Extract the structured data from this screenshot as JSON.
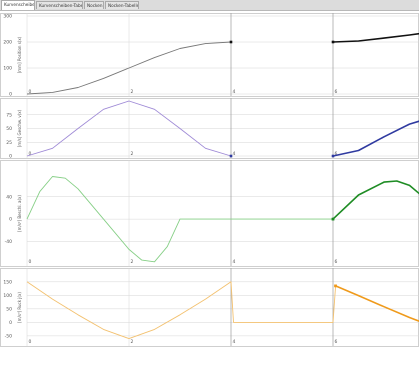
{
  "tabs": [
    {
      "label": "Kurvenscheibe",
      "active": true
    },
    {
      "label": "Kurvenscheiben-Tabelle",
      "active": false
    },
    {
      "label": "Nocken",
      "active": false
    },
    {
      "label": "Nocken-Tabelle",
      "active": false
    }
  ],
  "colors": {
    "grid": "#d6d6d6",
    "cursor": "#9a9a9a",
    "position": "#777777",
    "position_dark": "#111111",
    "velocity": "#9f8ad6",
    "velocity_dark": "#2f3aa0",
    "acceleration": "#86cf86",
    "acceleration_dark": "#1e8c24",
    "jerk": "#f3c16f",
    "jerk_dark": "#ef9a1b"
  },
  "x_ticks": [
    "0",
    "2",
    "4",
    "6"
  ],
  "chart_data": [
    {
      "type": "line",
      "ylabel": "[mm] Position s(x)",
      "ylim": [
        0,
        300
      ],
      "y_ticks": [
        "300",
        "200",
        "100",
        "0"
      ],
      "series": [
        {
          "values": [
            [
              0,
              0
            ],
            [
              0.5,
              6
            ],
            [
              1,
              25
            ],
            [
              1.5,
              60
            ],
            [
              2,
              100
            ],
            [
              2.5,
              140
            ],
            [
              3,
              175
            ],
            [
              3.5,
              194
            ],
            [
              4,
              200
            ]
          ]
        },
        {
          "values": [
            [
              6,
              200
            ],
            [
              6.5,
              204
            ],
            [
              7,
              215
            ],
            [
              7.5,
              227
            ],
            [
              8,
              240
            ]
          ]
        }
      ]
    },
    {
      "type": "line",
      "ylabel": "[m/s] Geschw. v(x)",
      "ylim": [
        0,
        100
      ],
      "y_ticks": [
        "75",
        "50",
        "25",
        "0"
      ],
      "series": [
        {
          "values": [
            [
              0,
              0
            ],
            [
              0.5,
              14
            ],
            [
              1,
              50
            ],
            [
              1.5,
              85
            ],
            [
              2,
              100
            ],
            [
              2.5,
              85
            ],
            [
              3,
              50
            ],
            [
              3.5,
              14
            ],
            [
              4,
              0
            ]
          ]
        },
        {
          "values": [
            [
              6,
              0
            ],
            [
              6.5,
              10
            ],
            [
              7,
              35
            ],
            [
              7.5,
              58
            ],
            [
              8,
              72
            ]
          ]
        }
      ]
    },
    {
      "type": "line",
      "ylabel": "[m/s²] Beschl. a(x)",
      "ylim": [
        -80,
        100
      ],
      "y_ticks": [
        "40",
        "0",
        "-40"
      ],
      "series": [
        {
          "values": [
            [
              0,
              0
            ],
            [
              0.25,
              49
            ],
            [
              0.5,
              76
            ],
            [
              0.75,
              73
            ],
            [
              1,
              54
            ],
            [
              1.5,
              0
            ],
            [
              2,
              -54
            ],
            [
              2.25,
              -73
            ],
            [
              2.5,
              -76
            ],
            [
              2.75,
              -49
            ],
            [
              3,
              0
            ],
            [
              4,
              0
            ],
            [
              6,
              0
            ]
          ]
        },
        {
          "values": [
            [
              6,
              0
            ],
            [
              6.5,
              43
            ],
            [
              7,
              66
            ],
            [
              7.25,
              68
            ],
            [
              7.5,
              60
            ],
            [
              8,
              22
            ]
          ]
        }
      ]
    },
    {
      "type": "line",
      "ylabel": "[m/s³] Ruck j(x)",
      "ylim": [
        -80,
        190
      ],
      "y_ticks": [
        "150",
        "100",
        "50",
        "0",
        "-50"
      ],
      "series": [
        {
          "values": [
            [
              0,
              150
            ],
            [
              0.5,
              86
            ],
            [
              1,
              28
            ],
            [
              1.5,
              -26
            ],
            [
              2,
              -60
            ],
            [
              2.5,
              -26
            ],
            [
              3,
              28
            ],
            [
              3.5,
              86
            ],
            [
              4,
              150
            ],
            [
              4.05,
              0
            ],
            [
              6,
              0
            ],
            [
              6.05,
              135
            ]
          ]
        },
        {
          "values": [
            [
              6.05,
              135
            ],
            [
              6.5,
              99
            ],
            [
              7,
              58
            ],
            [
              7.5,
              18
            ],
            [
              8,
              -18
            ]
          ]
        }
      ]
    }
  ]
}
